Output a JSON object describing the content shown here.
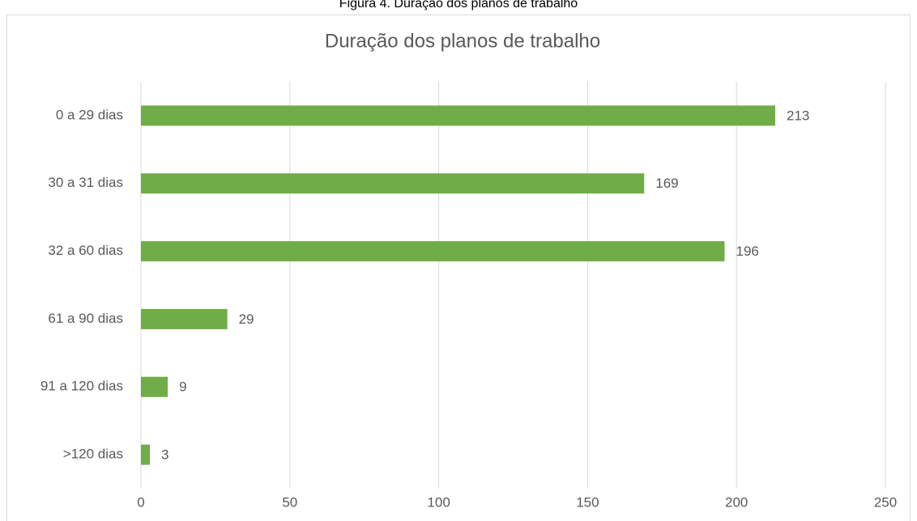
{
  "chart_data": {
    "type": "bar",
    "orientation": "horizontal",
    "caption": "Figura 4. Duração dos planos de trabalho",
    "title": "Duração dos planos de trabalho",
    "categories": [
      "0 a 29 dias",
      "30 a 31 dias",
      "32 a 60 dias",
      "61 a 90 dias",
      "91 a 120 dias",
      ">120 dias"
    ],
    "values": [
      213,
      169,
      196,
      29,
      9,
      3
    ],
    "color": "#70ad47",
    "xlim": [
      0,
      250
    ],
    "xticks": [
      0,
      50,
      100,
      150,
      200,
      250
    ],
    "grid": true
  }
}
